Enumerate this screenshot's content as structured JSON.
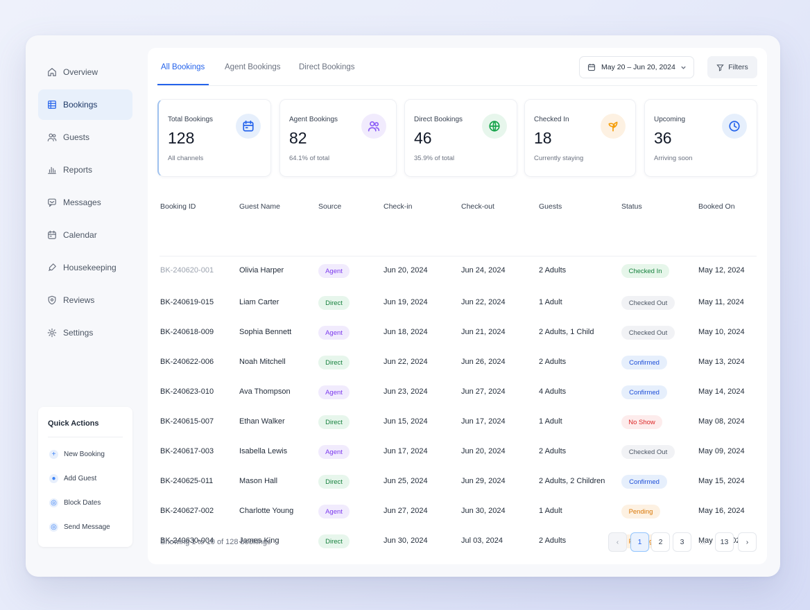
{
  "sidebar": {
    "items": [
      {
        "label": "Overview",
        "icon": "home-icon"
      },
      {
        "label": "Bookings",
        "icon": "grid-icon"
      },
      {
        "label": "Guests",
        "icon": "users-icon"
      },
      {
        "label": "Reports",
        "icon": "bar-chart-icon"
      },
      {
        "label": "Messages",
        "icon": "message-icon"
      },
      {
        "label": "Calendar",
        "icon": "calendar-icon"
      },
      {
        "label": "Housekeeping",
        "icon": "broom-icon"
      },
      {
        "label": "Reviews",
        "icon": "shield-star-icon"
      },
      {
        "label": "Settings",
        "icon": "gear-icon"
      }
    ],
    "active": "Bookings",
    "quick_actions": {
      "title": "Quick Actions",
      "items": [
        {
          "label": "New Booking",
          "icon": "plus-icon"
        },
        {
          "label": "Add Guest",
          "icon": "user-icon"
        },
        {
          "label": "Block Dates",
          "icon": "block-icon"
        },
        {
          "label": "Send Message",
          "icon": "send-icon"
        }
      ]
    }
  },
  "tabs": [
    {
      "label": "All Bookings"
    },
    {
      "label": "Agent Bookings"
    },
    {
      "label": "Direct Bookings"
    }
  ],
  "active_tab": "All Bookings",
  "date_range": "May 20 – Jun 20, 2024",
  "filters_label": "Filters",
  "stats": [
    {
      "label": "Total Bookings",
      "value": "128",
      "sub": "All channels",
      "icon": "calendar-icon",
      "icon_color": "#2563eb",
      "icon_bg": "#e6effc"
    },
    {
      "label": "Agent Bookings",
      "value": "82",
      "sub": "64.1% of total",
      "icon": "users-icon",
      "icon_color": "#8b5cf6",
      "icon_bg": "#f1ebfd"
    },
    {
      "label": "Direct Bookings",
      "value": "46",
      "sub": "35.9% of total",
      "icon": "globe-icon",
      "icon_color": "#16a34a",
      "icon_bg": "#e7f6ec"
    },
    {
      "label": "Checked In",
      "value": "18",
      "sub": "Currently staying",
      "icon": "leaf-icon",
      "icon_color": "#f59e0b",
      "icon_bg": "#fdf1e2"
    },
    {
      "label": "Upcoming",
      "value": "36",
      "sub": "Arriving soon",
      "icon": "clock-icon",
      "icon_color": "#2563eb",
      "icon_bg": "#e6effc"
    }
  ],
  "table": {
    "headers": [
      "Booking ID",
      "Guest Name",
      "Source",
      "Check-in",
      "Check-out",
      "Guests",
      "Status",
      "Booked On"
    ],
    "rows": [
      {
        "id": "BK-240620-001",
        "guest": "Olivia Harper",
        "source": "Agent",
        "checkin": "Jun 20, 2024",
        "checkout": "Jun 24, 2024",
        "guests": "2 Adults",
        "status": "Checked In",
        "booked": "May 12, 2024"
      },
      {
        "id": "BK-240619-015",
        "guest": "Liam Carter",
        "source": "Direct",
        "checkin": "Jun 19, 2024",
        "checkout": "Jun 22, 2024",
        "guests": "1 Adult",
        "status": "Checked Out",
        "booked": "May 11, 2024"
      },
      {
        "id": "BK-240618-009",
        "guest": "Sophia Bennett",
        "source": "Agent",
        "checkin": "Jun 18, 2024",
        "checkout": "Jun 21, 2024",
        "guests": "2 Adults, 1 Child",
        "status": "Checked Out",
        "booked": "May 10, 2024"
      },
      {
        "id": "BK-240622-006",
        "guest": "Noah Mitchell",
        "source": "Direct",
        "checkin": "Jun 22, 2024",
        "checkout": "Jun 26, 2024",
        "guests": "2 Adults",
        "status": "Confirmed",
        "booked": "May 13, 2024"
      },
      {
        "id": "BK-240623-010",
        "guest": "Ava Thompson",
        "source": "Agent",
        "checkin": "Jun 23, 2024",
        "checkout": "Jun 27, 2024",
        "guests": "4 Adults",
        "status": "Confirmed",
        "booked": "May 14, 2024"
      },
      {
        "id": "BK-240615-007",
        "guest": "Ethan Walker",
        "source": "Direct",
        "checkin": "Jun 15, 2024",
        "checkout": "Jun 17, 2024",
        "guests": "1 Adult",
        "status": "No Show",
        "booked": "May 08, 2024"
      },
      {
        "id": "BK-240617-003",
        "guest": "Isabella Lewis",
        "source": "Agent",
        "checkin": "Jun 17, 2024",
        "checkout": "Jun 20, 2024",
        "guests": "2 Adults",
        "status": "Checked Out",
        "booked": "May 09, 2024"
      },
      {
        "id": "BK-240625-011",
        "guest": "Mason Hall",
        "source": "Direct",
        "checkin": "Jun 25, 2024",
        "checkout": "Jun 29, 2024",
        "guests": "2 Adults, 2 Children",
        "status": "Confirmed",
        "booked": "May 15, 2024"
      },
      {
        "id": "BK-240627-002",
        "guest": "Charlotte Young",
        "source": "Agent",
        "checkin": "Jun 27, 2024",
        "checkout": "Jun 30, 2024",
        "guests": "1 Adult",
        "status": "Pending",
        "booked": "May 16, 2024"
      },
      {
        "id": "BK-240630-004",
        "guest": "James King",
        "source": "Direct",
        "checkin": "Jun 30, 2024",
        "checkout": "Jul 03, 2024",
        "guests": "2 Adults",
        "status": "Pending",
        "booked": "May 17, 2024"
      }
    ]
  },
  "pill_colors": {
    "Agent": {
      "bg": "#f1ebfd",
      "fg": "#7c3aed"
    },
    "Direct": {
      "bg": "#e7f6ec",
      "fg": "#15803d"
    },
    "Checked In": {
      "bg": "#e6f6ea",
      "fg": "#15803d"
    },
    "Checked Out": {
      "bg": "#f1f2f5",
      "fg": "#4b5563"
    },
    "Confirmed": {
      "bg": "#e6effc",
      "fg": "#1d4ed8"
    },
    "No Show": {
      "bg": "#fdecec",
      "fg": "#dc2626"
    },
    "Pending": {
      "bg": "#fdf1e2",
      "fg": "#d97706"
    }
  },
  "footer": {
    "showing": "Showing 1 to 10 of 128 bookings",
    "pages": [
      "1",
      "2",
      "3",
      "...",
      "13"
    ],
    "current_page": "1",
    "prev_icon": "chevron-left-icon",
    "next_icon": "chevron-right-icon"
  }
}
